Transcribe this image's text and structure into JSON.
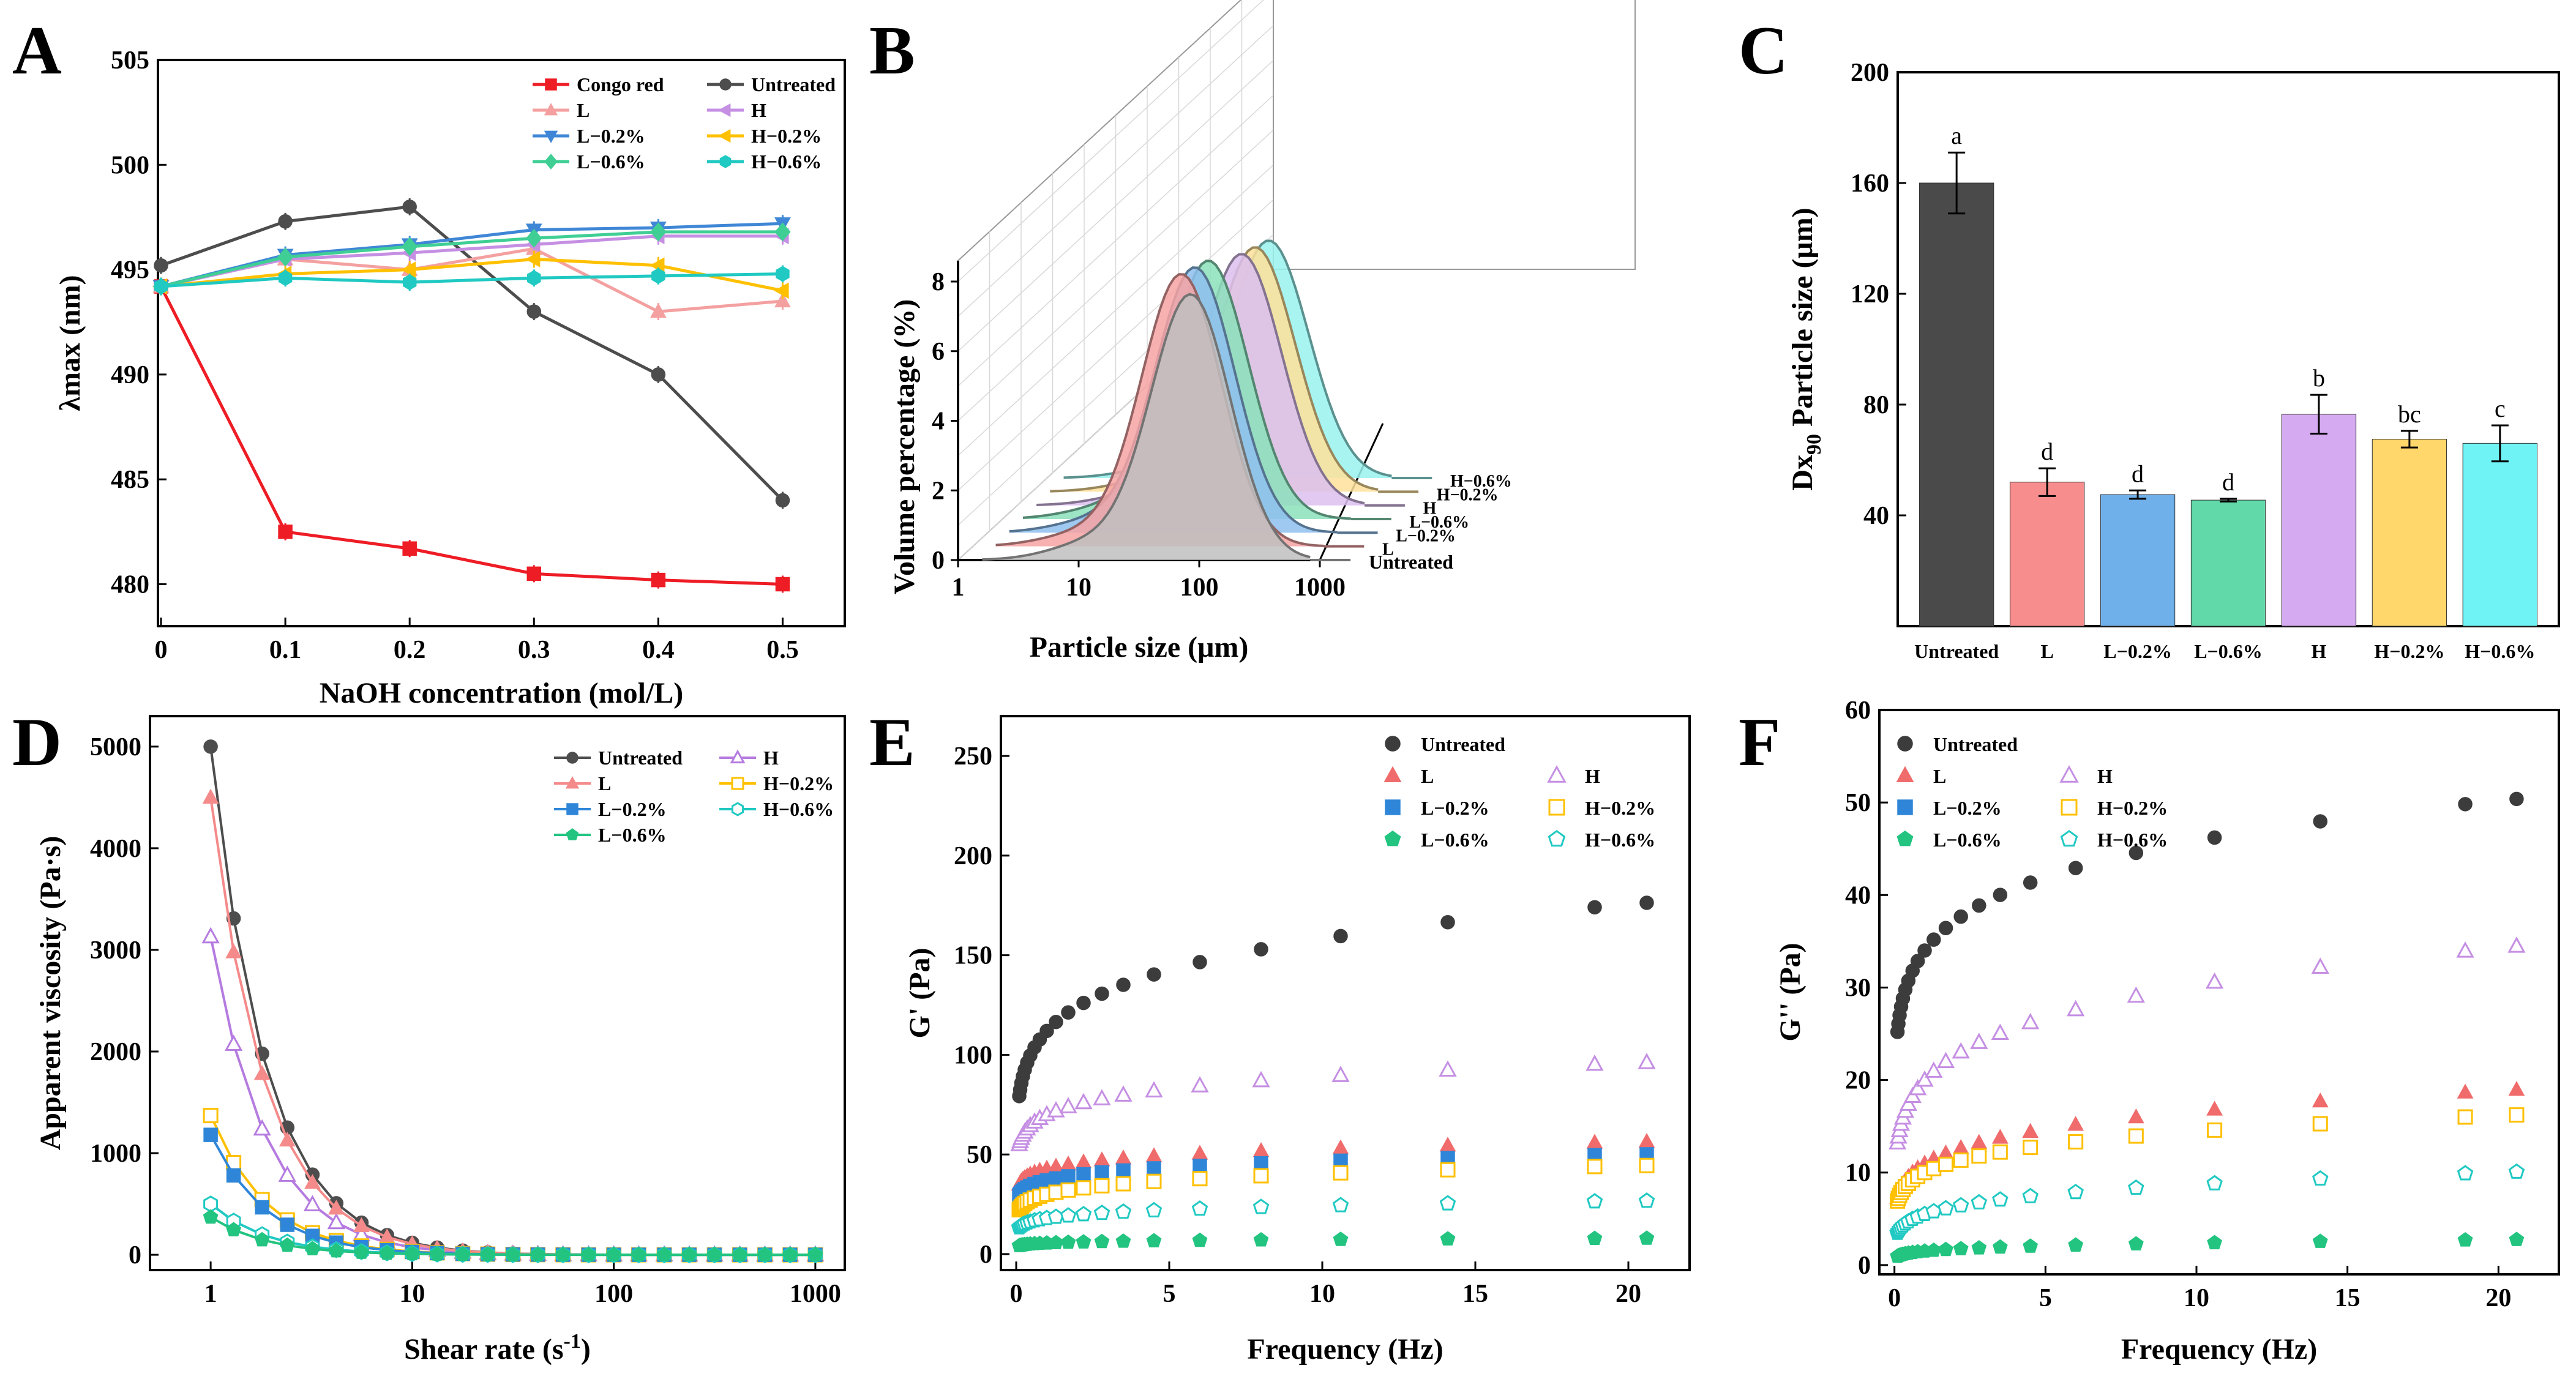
{
  "chart_data": [
    {
      "panel": "A",
      "type": "line",
      "xlabel": "NaOH concentration (mol/L)",
      "ylabel": "λmax (nm)",
      "x": [
        0,
        0.1,
        0.2,
        0.3,
        0.4,
        0.5
      ],
      "xticks": [
        "0",
        "0.1",
        "0.2",
        "0.3",
        "0.4",
        "0.5"
      ],
      "ylim": [
        478,
        505
      ],
      "yticks": [
        "480",
        "485",
        "490",
        "495",
        "500",
        "505"
      ],
      "series": [
        {
          "name": "Congo red",
          "color": "#ee1c25",
          "marker": "square",
          "values": [
            494.2,
            482.5,
            481.7,
            480.5,
            480.2,
            480.0
          ]
        },
        {
          "name": "Untreated",
          "color": "#4d4d4d",
          "marker": "circle",
          "values": [
            495.2,
            497.3,
            498.0,
            493.0,
            490.0,
            484.0
          ]
        },
        {
          "name": "L",
          "color": "#f4a0a0",
          "marker": "triangle-up",
          "values": [
            494.2,
            495.5,
            495.0,
            496.0,
            493.0,
            493.5
          ]
        },
        {
          "name": "H",
          "color": "#c58fe3",
          "marker": "triangle-left",
          "values": [
            494.2,
            495.5,
            495.8,
            496.2,
            496.6,
            496.6
          ]
        },
        {
          "name": "L−0.2%",
          "color": "#3f87d6",
          "marker": "triangle-down",
          "values": [
            494.2,
            495.7,
            496.2,
            496.9,
            497.0,
            497.2
          ]
        },
        {
          "name": "H−0.2%",
          "color": "#ffc000",
          "marker": "triangle-left",
          "values": [
            494.2,
            494.8,
            495.0,
            495.5,
            495.2,
            494.0
          ]
        },
        {
          "name": "L−0.6%",
          "color": "#3fcf94",
          "marker": "diamond",
          "values": [
            494.2,
            495.6,
            496.1,
            496.5,
            496.8,
            496.8
          ]
        },
        {
          "name": "H−0.6%",
          "color": "#20c9c2",
          "marker": "hexagon",
          "values": [
            494.2,
            494.6,
            494.4,
            494.6,
            494.7,
            494.8
          ]
        }
      ]
    },
    {
      "panel": "B",
      "type": "area",
      "xlabel": "Particle size (μm)",
      "ylabel": "Volume percentage (%)",
      "xticks": [
        "1",
        "10",
        "100",
        "1000"
      ],
      "yticks": [
        "0",
        "2",
        "4",
        "6",
        "8"
      ],
      "ylim": [
        0,
        8.5
      ],
      "note": "3D waterfall of size distributions; peak positions estimated",
      "series": [
        {
          "name": "Untreated",
          "color": "#c0c0c0",
          "peak_um": 85,
          "peak_pct": 7.6
        },
        {
          "name": "L",
          "color": "#f7a3a3",
          "peak_um": 55,
          "peak_pct": 7.8
        },
        {
          "name": "L−0.2%",
          "color": "#8ec0ef",
          "peak_um": 55,
          "peak_pct": 7.6
        },
        {
          "name": "L−0.6%",
          "color": "#8be0bb",
          "peak_um": 55,
          "peak_pct": 7.4
        },
        {
          "name": "H",
          "color": "#dcc0f0",
          "peak_um": 80,
          "peak_pct": 7.2
        },
        {
          "name": "H−0.2%",
          "color": "#ffe19a",
          "peak_um": 80,
          "peak_pct": 7.0
        },
        {
          "name": "H−0.6%",
          "color": "#98f2ef",
          "peak_um": 80,
          "peak_pct": 6.8
        }
      ]
    },
    {
      "panel": "C",
      "type": "bar",
      "ylabel_main": "Dx",
      "ylabel_sub": "90",
      "ylabel_rest": " Particle size (μm)",
      "categories": [
        "Untreated",
        "L",
        "L−0.2%",
        "L−0.6%",
        "H",
        "H−0.2%",
        "H−0.6%"
      ],
      "values": [
        160,
        52,
        47.5,
        45.5,
        76.5,
        67.5,
        66
      ],
      "errors": [
        11,
        5,
        1.5,
        0.5,
        7,
        3,
        6.5
      ],
      "letters": [
        "a",
        "d",
        "d",
        "d",
        "b",
        "bc",
        "c"
      ],
      "colors": [
        "#4a4a4a",
        "#f88d8d",
        "#6fb0eb",
        "#62d9a9",
        "#d5aaf0",
        "#ffd76b",
        "#6ff3f4"
      ],
      "ylim": [
        0,
        200
      ],
      "yticks": [
        "40",
        "80",
        "120",
        "160",
        "200"
      ]
    },
    {
      "panel": "D",
      "type": "line",
      "xscale": "log",
      "xlabel_main": "Shear rate (s",
      "xlabel_sup": "-1",
      "xlabel_end": ")",
      "ylabel": "Apparent viscosity (Pa·s)",
      "xlim": [
        0.5,
        1400
      ],
      "xticks": [
        "1",
        "10",
        "100",
        "1000"
      ],
      "ylim": [
        -150,
        5300
      ],
      "yticks": [
        "0",
        "1000",
        "2000",
        "3000",
        "4000",
        "5000"
      ],
      "series": [
        {
          "name": "Untreated",
          "color": "#4d4d4d",
          "marker": "circle",
          "v0": 5000
        },
        {
          "name": "H",
          "color": "#b57be0",
          "marker": "triangle-up-open",
          "v0": 3130
        },
        {
          "name": "L",
          "color": "#f58a8a",
          "marker": "triangle-up",
          "v0": 4500
        },
        {
          "name": "H−0.2%",
          "color": "#ffc000",
          "marker": "square-open",
          "v0": 1370
        },
        {
          "name": "L−0.2%",
          "color": "#2f86d8",
          "marker": "square",
          "v0": 1180
        },
        {
          "name": "H−0.6%",
          "color": "#20c9c2",
          "marker": "hexagon-open",
          "v0": 500
        },
        {
          "name": "L−0.6%",
          "color": "#22c480",
          "marker": "pentagon",
          "v0": 370
        }
      ]
    },
    {
      "panel": "E",
      "type": "scatter",
      "xlabel": "Frequency (Hz)",
      "ylabel": "G' (Pa)",
      "xlim": [
        -0.5,
        22
      ],
      "xticks": [
        "0",
        "5",
        "10",
        "15",
        "20"
      ],
      "ylim": [
        -8,
        270
      ],
      "yticks": [
        "0",
        "50",
        "100",
        "150",
        "200",
        "250"
      ],
      "series": [
        {
          "name": "Untreated",
          "color": "#3c3c3c",
          "marker": "circle",
          "a": 112,
          "b": 0.15
        },
        {
          "name": "L",
          "color": "#f06b6b",
          "marker": "triangle-up",
          "a": 43,
          "b": 0.09
        },
        {
          "name": "H",
          "color": "#c58fe3",
          "marker": "triangle-up-open",
          "a": 70,
          "b": 0.105
        },
        {
          "name": "L−0.2%",
          "color": "#2f86d8",
          "marker": "square",
          "a": 37,
          "b": 0.1
        },
        {
          "name": "H−0.2%",
          "color": "#ffc000",
          "marker": "square-open",
          "a": 30,
          "b": 0.13
        },
        {
          "name": "L−0.6%",
          "color": "#22c480",
          "marker": "pentagon",
          "a": 5.5,
          "b": 0.12
        },
        {
          "name": "H−0.6%",
          "color": "#20c9c2",
          "marker": "pentagon-open",
          "a": 18,
          "b": 0.13
        }
      ]
    },
    {
      "panel": "F",
      "type": "scatter",
      "xlabel": "Frequency (Hz)",
      "ylabel": "G'' (Pa)",
      "xlim": [
        -0.5,
        22
      ],
      "xticks": [
        "0",
        "5",
        "10",
        "15",
        "20"
      ],
      "ylim": [
        -1,
        60
      ],
      "yticks": [
        "0",
        "10",
        "20",
        "30",
        "40",
        "50",
        "60"
      ],
      "series": [
        {
          "name": "Untreated",
          "color": "#3c3c3c",
          "marker": "circle",
          "a": 34,
          "b": 0.13
        },
        {
          "name": "L",
          "color": "#f06b6b",
          "marker": "triangle-up",
          "a": 11,
          "b": 0.18
        },
        {
          "name": "H",
          "color": "#c58fe3",
          "marker": "triangle-up-open",
          "a": 20,
          "b": 0.18
        },
        {
          "name": "L−0.2%",
          "color": "#2f86d8",
          "marker": "square",
          "a": 10,
          "b": 0.16
        },
        {
          "name": "H−0.2%",
          "color": "#ffc000",
          "marker": "square-open",
          "a": 10,
          "b": 0.16
        },
        {
          "name": "L−0.6%",
          "color": "#22c480",
          "marker": "pentagon",
          "a": 1.5,
          "b": 0.2
        },
        {
          "name": "H−0.6%",
          "color": "#20c9c2",
          "marker": "pentagon-open",
          "a": 5.5,
          "b": 0.2
        }
      ]
    }
  ],
  "panel_letters": [
    "A",
    "B",
    "C",
    "D",
    "E",
    "F"
  ],
  "panel_b_labels": [
    "Untreated",
    "L",
    "L−0.2%",
    "L−0.6%",
    "H",
    "H−0.2%",
    "H−0.6%"
  ]
}
